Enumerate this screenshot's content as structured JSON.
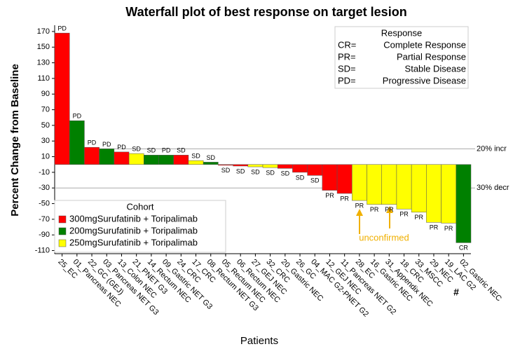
{
  "chart_data": {
    "type": "waterfall",
    "title": "Waterfall plot of best response on target lesion",
    "x_label": "Patients",
    "y_label": "Percent Change from Baseline",
    "categories": [
      "25_EC",
      "01_Pancreas NEC",
      "22_GC (GEJ)",
      "03_Pancreas NET G3",
      "13_Colon NEC",
      "21_PNET G3",
      "14_Rectum NEC",
      "09_Gastric NET G3",
      "24_CRC",
      "17_CRC",
      "08_Rectum NET G3",
      "05_Rectum NEC",
      "06_Rectum NEC",
      "27_GEJ NEC",
      "32_CRC",
      "20_Gastric NEC",
      "26_GC",
      "04_MAC G2-PNET G2",
      "12_GEJ NEC",
      "11_Pancreas NET G2",
      "28_EC",
      "16_Gastric NEC",
      "31_Appendix NEC",
      "18_CRC",
      "33_MSCC",
      "29_NEC",
      "19_LAC G2",
      "02_Gastric NEC"
    ],
    "values": [
      168,
      56,
      22,
      20,
      16,
      14,
      12,
      12,
      12,
      5,
      3,
      -1,
      -2,
      -3,
      -4,
      -5,
      -10,
      -14,
      -33,
      -37,
      -46,
      -51,
      -51,
      -57,
      -61,
      -74,
      -75,
      -100
    ],
    "colors": [
      "#ff0000",
      "#008000",
      "#ff0000",
      "#008000",
      "#ff0000",
      "#ffff00",
      "#008000",
      "#008000",
      "#ff0000",
      "#ffff00",
      "#008000",
      "#ff0000",
      "#ff0000",
      "#ffff00",
      "#ffff00",
      "#ff0000",
      "#ff0000",
      "#ff0000",
      "#ff0000",
      "#ff0000",
      "#ffff00",
      "#ffff00",
      "#ffff00",
      "#ffff00",
      "#ffff00",
      "#ffff00",
      "#ffff00",
      "#008000"
    ],
    "responses": [
      "PD",
      "PD",
      "PD",
      "PD",
      "PD",
      "SD",
      "SD",
      "PD",
      "SD",
      "SD",
      "SD",
      "SD",
      "SD",
      "SD",
      "SD",
      "SD",
      "SD",
      "SD",
      "PR",
      "PR",
      "PR",
      "PR",
      "PR",
      "PR",
      "PR",
      "PR",
      "PR",
      "CR"
    ],
    "ylim": [
      -114,
      178
    ],
    "yticks": [
      -110,
      -90,
      -70,
      -50,
      -30,
      -10,
      10,
      30,
      50,
      70,
      90,
      110,
      130,
      150,
      170
    ],
    "reference_lines": [
      {
        "value": 20,
        "label": "20% incr"
      },
      {
        "value": -30,
        "label": "30% decr"
      }
    ],
    "response_legend": {
      "title": "Response",
      "entries": [
        [
          "CR=",
          "Complete Response"
        ],
        [
          "PR=",
          "Partial Response"
        ],
        [
          "SD=",
          "Stable Disease"
        ],
        [
          "PD=",
          "Progressive Disease"
        ]
      ]
    },
    "cohort_legend": {
      "title": "Cohort",
      "series": [
        {
          "name": "300mgSurufatinib + Toripalimab",
          "color": "#ff0000"
        },
        {
          "name": "200mgSurufatinib + Toripalimab",
          "color": "#008000"
        },
        {
          "name": "250mgSurufatinib + Toripalimab",
          "color": "#ffff00"
        }
      ]
    },
    "annotations": [
      "unconfirmed",
      "#"
    ]
  }
}
